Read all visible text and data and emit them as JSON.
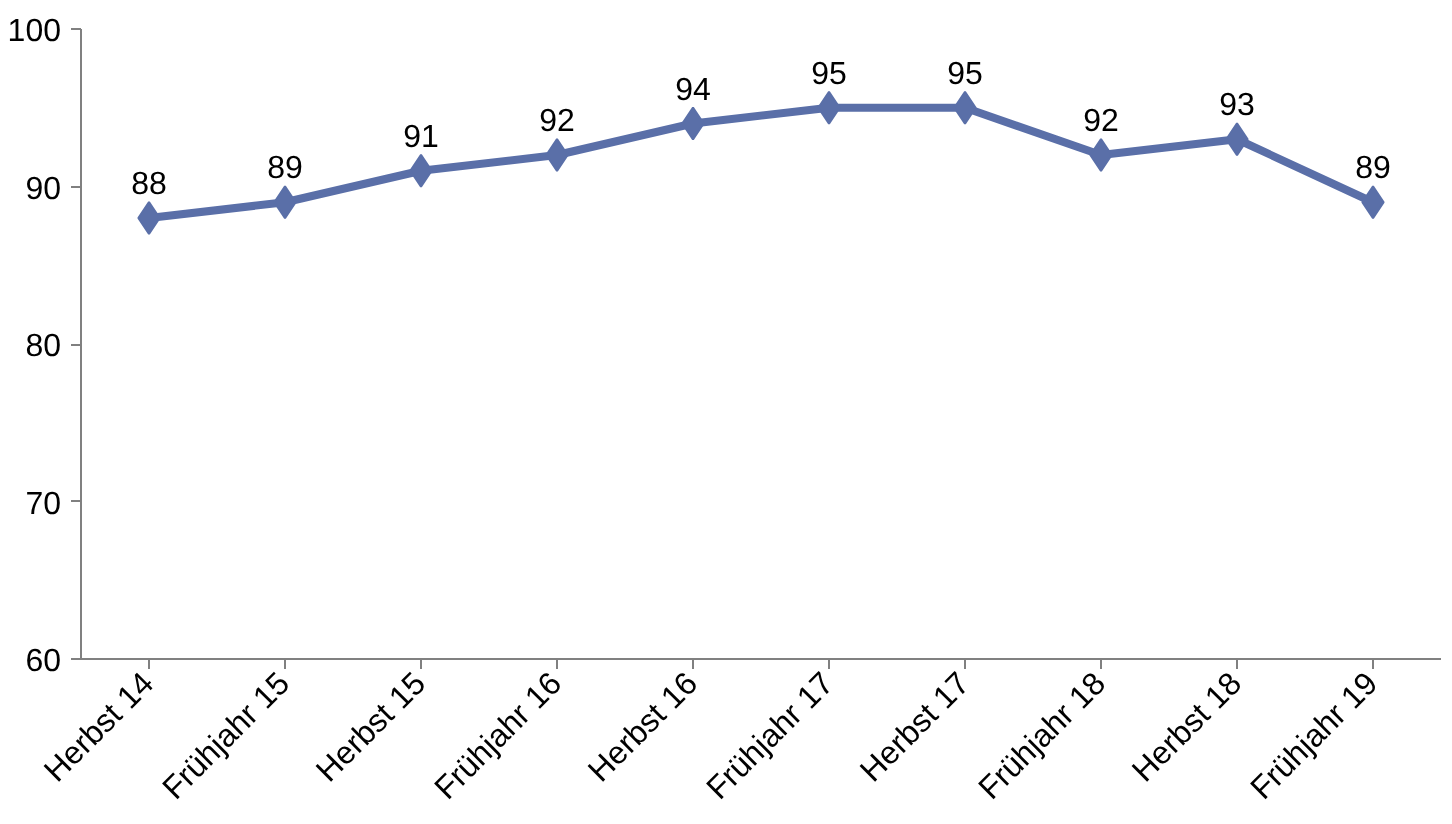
{
  "chart_data": {
    "type": "line",
    "categories": [
      "Herbst 14",
      "Frühjahr 15",
      "Herbst 15",
      "Frühjahr 16",
      "Herbst 16",
      "Frühjahr 17",
      "Herbst 17",
      "Frühjahr 18",
      "Herbst 18",
      "Frühjahr 19"
    ],
    "series": [
      {
        "color": "#5a6fa8",
        "values": [
          88,
          89,
          91,
          92,
          94,
          95,
          95,
          92,
          93,
          89
        ]
      }
    ],
    "ylim": [
      60,
      100
    ],
    "yticks": [
      60,
      70,
      80,
      90,
      100
    ],
    "grid": false,
    "marker": "diamond",
    "line_style": "solid",
    "data_labels": true
  }
}
